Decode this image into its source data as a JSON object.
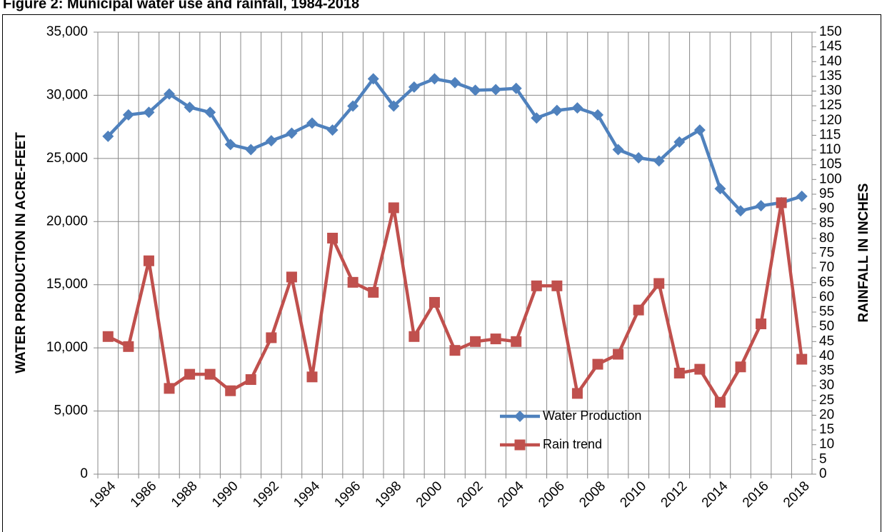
{
  "chart_data": {
    "type": "line",
    "title": "Figure 2: Municipal water use and rainfall, 1984-2018",
    "y_label": "WATER PRODUCTION IN ACRE-FEET",
    "y2_label": "RAINFALL IN INCHES",
    "categories": [
      "1984",
      null,
      "1986",
      null,
      "1988",
      null,
      "1990",
      null,
      "1992",
      null,
      "1994",
      null,
      "1996",
      null,
      "1998",
      null,
      "2000",
      null,
      "2002",
      null,
      "2004",
      null,
      "2006",
      null,
      "2008",
      null,
      "2010",
      null,
      "2012",
      null,
      "2014",
      null,
      "2016",
      null,
      "2018"
    ],
    "series": [
      {
        "name": "Water Production",
        "color": "#4f81bd",
        "marker": "diamond",
        "values": [
          26750,
          28450,
          28650,
          30100,
          29050,
          28650,
          26100,
          25700,
          26400,
          27000,
          27800,
          27250,
          29150,
          31300,
          29150,
          30650,
          31300,
          31000,
          30400,
          30450,
          30550,
          28200,
          28800,
          29000,
          28450,
          25700,
          25050,
          24800,
          26300,
          27250,
          22600,
          20850,
          21250,
          21500,
          22000
        ]
      },
      {
        "name": "Rain trend",
        "color": "#c0504d",
        "marker": "square",
        "axis": "y2",
        "values": [
          46.7,
          43.3,
          72.4,
          29.1,
          33.9,
          33.9,
          28.3,
          32.1,
          46.3,
          66.9,
          33.0,
          80.1,
          65.1,
          61.7,
          90.4,
          46.7,
          58.3,
          42.0,
          45.0,
          45.9,
          45.0,
          63.9,
          63.9,
          27.4,
          37.3,
          40.7,
          55.7,
          64.7,
          34.3,
          35.6,
          24.4,
          36.4,
          51.0,
          92.1,
          39.0
        ]
      }
    ],
    "ylim": [
      0,
      35000
    ],
    "yticks": [
      0,
      {
        "value": 5000,
        "label": "5,000"
      },
      {
        "value": 10000,
        "label": "10,000"
      },
      {
        "value": 15000,
        "label": "15,000"
      },
      {
        "value": 20000,
        "label": "20,000"
      },
      {
        "value": 25000,
        "label": "25,000"
      },
      {
        "value": 30000,
        "label": "30,000"
      },
      {
        "value": 35000,
        "label": "35,000"
      }
    ],
    "y2lim": [
      0,
      150
    ],
    "y2ticks": [
      0,
      5,
      10,
      15,
      20,
      25,
      30,
      35,
      40,
      45,
      50,
      55,
      60,
      65,
      70,
      75,
      80,
      85,
      90,
      95,
      100,
      105,
      110,
      115,
      120,
      125,
      130,
      135,
      140,
      145,
      150
    ],
    "grid": true
  }
}
